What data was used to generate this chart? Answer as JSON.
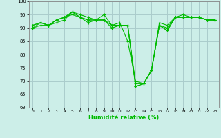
{
  "title": "",
  "xlabel": "Humidité relative (%)",
  "ylabel": "",
  "xlim": [
    -0.5,
    23.5
  ],
  "ylim": [
    60,
    100
  ],
  "yticks": [
    60,
    65,
    70,
    75,
    80,
    85,
    90,
    95,
    100
  ],
  "xticks": [
    0,
    1,
    2,
    3,
    4,
    5,
    6,
    7,
    8,
    9,
    10,
    11,
    12,
    13,
    14,
    15,
    16,
    17,
    18,
    19,
    20,
    21,
    22,
    23
  ],
  "background_color": "#cceee8",
  "grid_color": "#aacccc",
  "line_color": "#00bb00",
  "marker": "+",
  "series": [
    [
      90,
      91,
      91,
      92,
      93,
      96,
      94,
      92,
      93,
      93,
      91,
      91,
      91,
      68,
      69,
      74,
      91,
      89,
      94,
      94,
      94,
      94,
      93,
      93
    ],
    [
      90,
      92,
      91,
      93,
      94,
      96,
      95,
      94,
      93,
      95,
      91,
      92,
      85,
      70,
      69,
      74,
      91,
      90,
      94,
      95,
      94,
      94,
      93,
      93
    ],
    [
      91,
      92,
      91,
      93,
      94,
      95,
      94,
      93,
      93,
      93,
      90,
      91,
      91,
      68,
      69,
      74,
      92,
      91,
      94,
      94,
      94,
      94,
      93,
      93
    ],
    [
      91,
      92,
      91,
      93,
      94,
      96,
      94,
      93,
      93,
      93,
      91,
      91,
      91,
      69,
      69,
      74,
      91,
      89,
      94,
      94,
      94,
      94,
      93,
      93
    ]
  ]
}
